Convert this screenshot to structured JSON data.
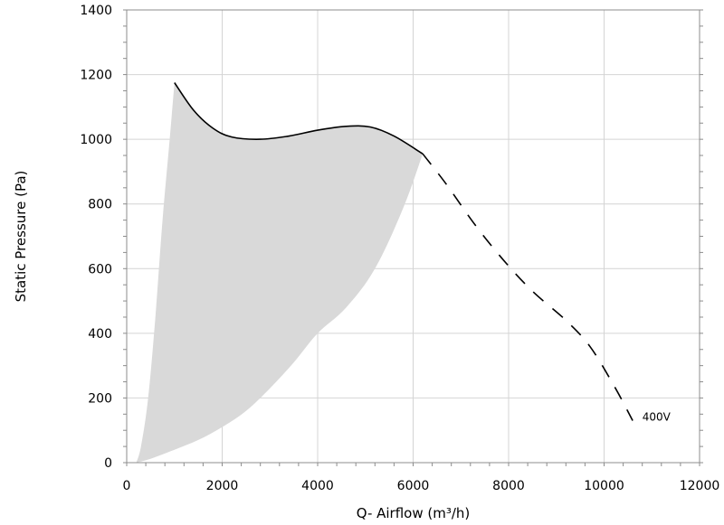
{
  "chart_data": {
    "type": "line",
    "title": "",
    "xlabel": "Q- Airflow (m³/h)",
    "ylabel": "Static Pressure (Pa)",
    "xlim": [
      0,
      12000
    ],
    "ylim": [
      0,
      1400
    ],
    "x_ticks": [
      "0",
      "2000",
      "4000",
      "6000",
      "8000",
      "10000",
      "12000"
    ],
    "y_ticks": [
      "0",
      "200",
      "400",
      "600",
      "800",
      "1000",
      "1200",
      "1400"
    ],
    "grid": true,
    "operating_region": {
      "color": "#d9d9d9",
      "upper_boundary": [
        [
          1000,
          1175
        ],
        [
          1400,
          1090
        ],
        [
          1800,
          1035
        ],
        [
          2200,
          1007
        ],
        [
          2800,
          1000
        ],
        [
          3400,
          1010
        ],
        [
          4000,
          1028
        ],
        [
          4600,
          1040
        ],
        [
          5100,
          1038
        ],
        [
          5600,
          1010
        ],
        [
          6200,
          955
        ]
      ],
      "lower_boundary": [
        [
          6200,
          955
        ],
        [
          5800,
          790
        ],
        [
          5200,
          600
        ],
        [
          4600,
          480
        ],
        [
          4000,
          400
        ],
        [
          3500,
          310
        ],
        [
          3000,
          230
        ],
        [
          2500,
          160
        ],
        [
          2000,
          110
        ],
        [
          1500,
          70
        ],
        [
          1000,
          40
        ],
        [
          500,
          12
        ],
        [
          200,
          0
        ]
      ],
      "left_boundary": [
        [
          200,
          0
        ],
        [
          300,
          50
        ],
        [
          450,
          200
        ],
        [
          600,
          450
        ],
        [
          750,
          750
        ],
        [
          900,
          1000
        ],
        [
          1000,
          1175
        ]
      ]
    },
    "series": [
      {
        "name": "400V",
        "style": "solid",
        "color": "#000000",
        "points": [
          [
            1000,
            1175
          ],
          [
            1400,
            1090
          ],
          [
            1800,
            1035
          ],
          [
            2200,
            1007
          ],
          [
            2800,
            1000
          ],
          [
            3400,
            1010
          ],
          [
            4000,
            1028
          ],
          [
            4600,
            1040
          ],
          [
            5100,
            1038
          ],
          [
            5600,
            1010
          ],
          [
            6200,
            955
          ]
        ]
      },
      {
        "name": "400V",
        "style": "dashed",
        "color": "#000000",
        "points": [
          [
            6200,
            955
          ],
          [
            6700,
            860
          ],
          [
            7300,
            735
          ],
          [
            7900,
            625
          ],
          [
            8500,
            530
          ],
          [
            9200,
            440
          ],
          [
            9700,
            360
          ],
          [
            10200,
            240
          ],
          [
            10600,
            130
          ]
        ]
      }
    ],
    "annotations": [
      {
        "text": "400V",
        "x": 10800,
        "y": 125
      }
    ]
  }
}
